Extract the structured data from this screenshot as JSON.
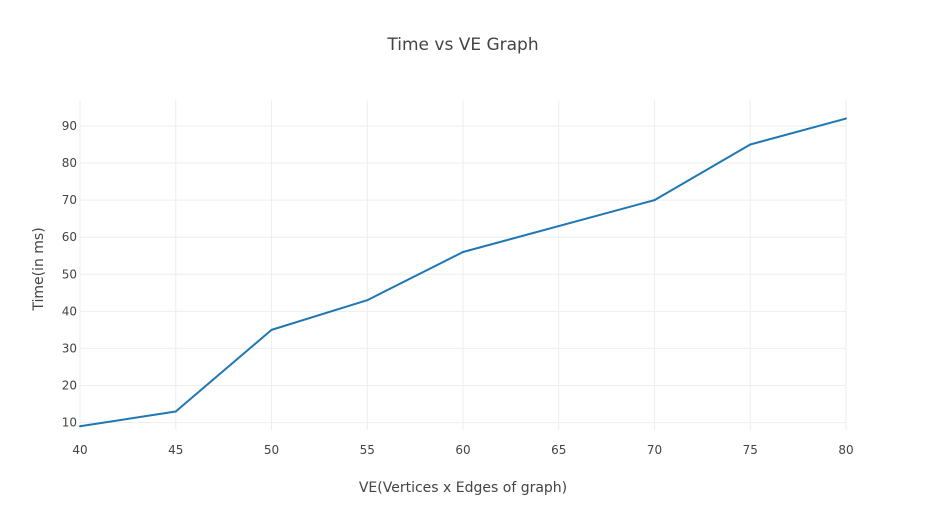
{
  "chart_data": {
    "type": "line",
    "title": "Time vs VE Graph",
    "xlabel": "VE(Vertices x Edges of graph)",
    "ylabel": "Time(in ms)",
    "xlim": [
      40,
      80
    ],
    "ylim": [
      8,
      97
    ],
    "x_ticks": [
      40,
      45,
      50,
      55,
      60,
      65,
      70,
      75,
      80
    ],
    "y_ticks": [
      10,
      20,
      30,
      40,
      50,
      60,
      70,
      80,
      90
    ],
    "grid": true,
    "legend": "none",
    "series": [
      {
        "x": [
          40,
          45,
          50,
          55,
          60,
          70,
          75,
          80
        ],
        "y": [
          9,
          13,
          35,
          43,
          56,
          70,
          85,
          92
        ],
        "color": "#1f77b4"
      }
    ]
  }
}
